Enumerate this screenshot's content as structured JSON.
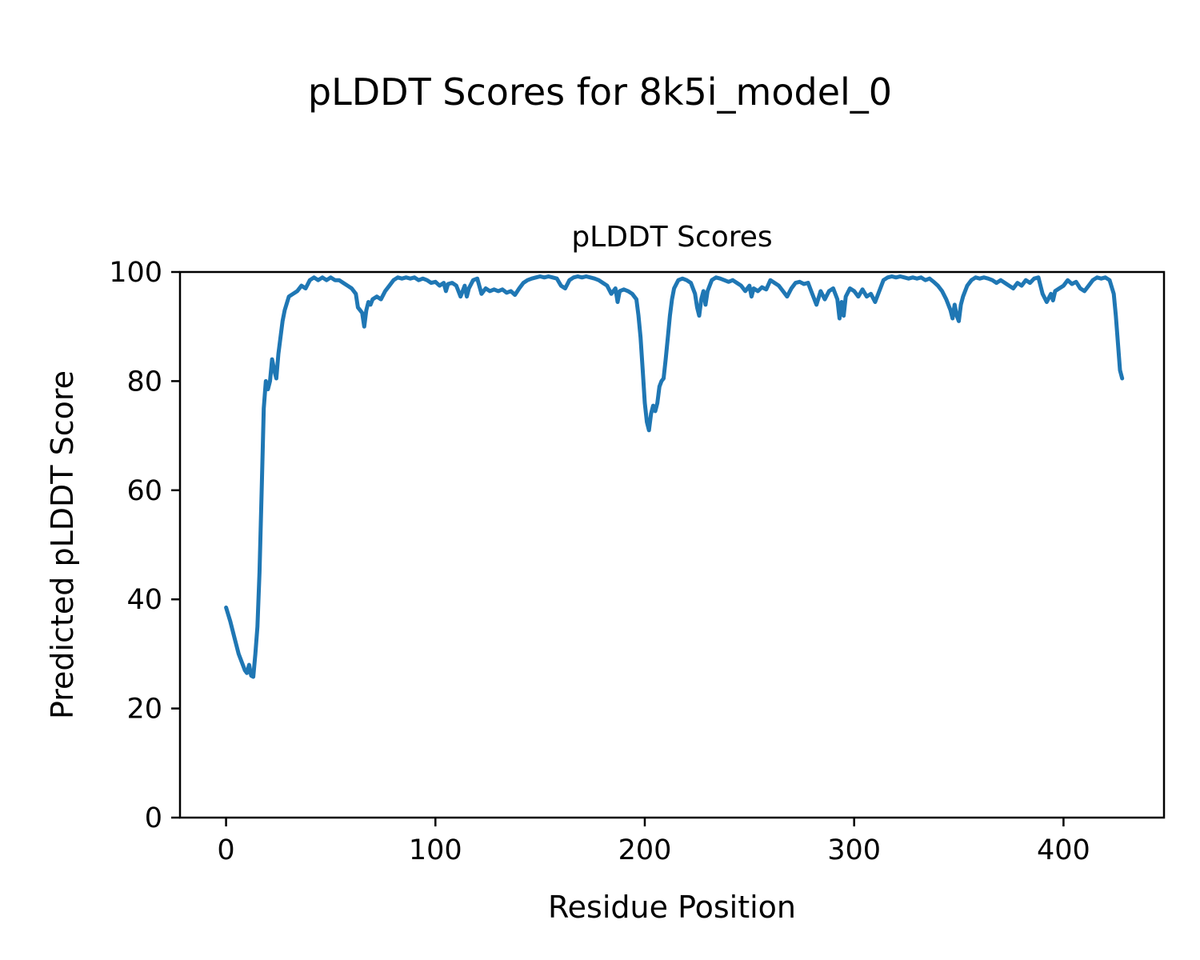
{
  "figure": {
    "title": "pLDDT Scores for 8k5i_model_0",
    "background_color": "#ffffff",
    "text_color": "#000000"
  },
  "chart_data": {
    "type": "line",
    "title": "pLDDT Scores",
    "xlabel": "Residue Position",
    "ylabel": "Predicted pLDDT Score",
    "xlim": [
      -22,
      448
    ],
    "ylim": [
      0,
      100
    ],
    "x_ticks": [
      0,
      100,
      200,
      300,
      400
    ],
    "y_ticks": [
      0,
      20,
      40,
      60,
      80,
      100
    ],
    "grid": false,
    "legend": "none",
    "line_color": "#1f77b4",
    "line_width": 5,
    "x": [
      0,
      2,
      4,
      6,
      8,
      9,
      10,
      11,
      12,
      13,
      14,
      15,
      16,
      17,
      18,
      19,
      20,
      21,
      22,
      23,
      24,
      25,
      26,
      27,
      28,
      30,
      32,
      34,
      36,
      38,
      40,
      42,
      44,
      46,
      48,
      50,
      52,
      54,
      56,
      58,
      60,
      62,
      63,
      64,
      65,
      66,
      67,
      68,
      69,
      70,
      72,
      74,
      76,
      78,
      80,
      82,
      84,
      86,
      88,
      90,
      92,
      94,
      96,
      98,
      100,
      102,
      104,
      105,
      106,
      108,
      110,
      112,
      114,
      115,
      116,
      118,
      120,
      122,
      124,
      126,
      128,
      130,
      132,
      134,
      136,
      138,
      140,
      142,
      144,
      146,
      148,
      150,
      152,
      154,
      156,
      158,
      160,
      162,
      164,
      166,
      168,
      170,
      172,
      174,
      176,
      178,
      180,
      182,
      184,
      186,
      187,
      188,
      190,
      192,
      194,
      196,
      197,
      198,
      199,
      200,
      201,
      202,
      203,
      204,
      205,
      206,
      207,
      208,
      209,
      210,
      211,
      212,
      213,
      214,
      216,
      218,
      220,
      222,
      224,
      225,
      226,
      227,
      228,
      229,
      230,
      232,
      234,
      236,
      238,
      240,
      242,
      244,
      246,
      248,
      250,
      251,
      252,
      254,
      256,
      258,
      260,
      262,
      264,
      266,
      268,
      270,
      272,
      274,
      276,
      278,
      280,
      282,
      284,
      286,
      288,
      290,
      292,
      293,
      294,
      295,
      296,
      298,
      300,
      302,
      304,
      306,
      308,
      310,
      312,
      314,
      316,
      318,
      320,
      322,
      324,
      326,
      328,
      330,
      332,
      334,
      336,
      338,
      340,
      342,
      344,
      346,
      347,
      348,
      349,
      350,
      351,
      352,
      354,
      356,
      358,
      360,
      362,
      364,
      366,
      368,
      370,
      372,
      374,
      376,
      378,
      380,
      382,
      384,
      386,
      388,
      390,
      392,
      394,
      395,
      396,
      398,
      400,
      402,
      404,
      406,
      408,
      410,
      412,
      414,
      416,
      418,
      420,
      422,
      424,
      425,
      426,
      427,
      428
    ],
    "y": [
      38.5,
      36,
      33,
      30,
      28,
      27,
      26.5,
      28,
      26,
      25.8,
      30,
      35,
      45,
      60,
      75,
      80,
      78.5,
      80,
      84,
      82,
      80.5,
      85,
      88,
      91,
      93,
      95.5,
      96,
      96.5,
      97.5,
      97,
      98.5,
      99,
      98.5,
      99,
      98.5,
      99,
      98.5,
      98.5,
      98,
      97.5,
      97,
      96,
      93.5,
      93,
      92.5,
      90,
      93,
      94.5,
      94,
      95,
      95.5,
      95,
      96.5,
      97.5,
      98.5,
      99,
      98.8,
      99,
      98.8,
      99,
      98.5,
      98.8,
      98.5,
      98,
      98.2,
      97.5,
      98,
      96.5,
      97.8,
      98,
      97.5,
      95.5,
      97.5,
      95.5,
      97,
      98.5,
      98.8,
      96,
      97,
      96.5,
      96.8,
      96.5,
      96.8,
      96.2,
      96.5,
      95.8,
      97,
      98,
      98.5,
      98.8,
      99,
      99.2,
      99,
      99.2,
      99,
      98.8,
      97.5,
      97,
      98.5,
      99,
      99.2,
      99,
      99.2,
      99,
      98.8,
      98.5,
      98,
      97.5,
      96,
      97,
      94.5,
      96.5,
      96.8,
      96.5,
      96,
      95,
      92,
      88,
      82,
      76,
      72.5,
      71,
      74,
      75.5,
      74.5,
      76,
      79,
      80,
      80.5,
      84,
      88,
      92,
      95,
      97,
      98.5,
      98.8,
      98.5,
      98,
      96,
      93.5,
      92,
      95,
      96.5,
      94,
      96.5,
      98.5,
      99,
      98.8,
      98.5,
      98.2,
      98.5,
      98,
      97.5,
      96.5,
      97.5,
      95.5,
      97,
      96.5,
      97.2,
      96.8,
      98.5,
      98,
      97.5,
      96.5,
      95.5,
      97,
      98,
      98.2,
      97.8,
      98,
      96,
      94,
      96.5,
      95,
      96.5,
      97,
      95,
      91.5,
      94.5,
      92,
      95.5,
      97,
      96.5,
      95.5,
      96.8,
      95.5,
      96,
      94.5,
      96.5,
      98.5,
      99,
      99.2,
      99,
      99.2,
      99,
      98.8,
      99,
      98.8,
      99,
      98.5,
      98.8,
      98.2,
      97.5,
      96.5,
      95,
      93,
      91.5,
      94,
      92,
      91,
      94,
      95.5,
      97.5,
      98.5,
      99,
      98.8,
      99,
      98.8,
      98.5,
      98,
      98.5,
      98,
      97.5,
      97,
      98,
      97.5,
      98.5,
      98,
      98.8,
      99,
      96,
      94.5,
      96,
      94.8,
      96.5,
      97,
      97.5,
      98.5,
      97.8,
      98.2,
      97,
      96.5,
      97.5,
      98.5,
      99,
      98.8,
      99,
      98.5,
      96,
      92,
      87,
      82,
      80.5
    ]
  }
}
